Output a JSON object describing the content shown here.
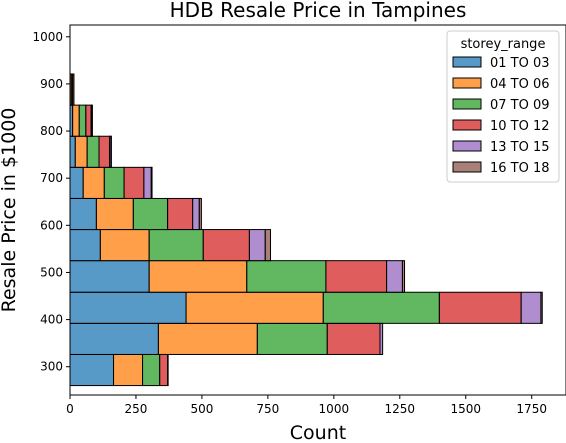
{
  "chart_data": {
    "type": "bar",
    "orientation": "horizontal",
    "stacking": "stacked",
    "title": "HDB Resale Price in Tampines",
    "xlabel": "Count",
    "ylabel": "Resale Price in $1000",
    "xlim": [
      0,
      1880
    ],
    "ylim": [
      240,
      1025
    ],
    "grid": false,
    "legend_title": "storey_range",
    "legend_position": "top-right",
    "x_ticks": [
      0,
      250,
      500,
      750,
      1000,
      1250,
      1500,
      1750
    ],
    "y_ticks": [
      300,
      400,
      500,
      600,
      700,
      800,
      900,
      1000
    ],
    "bins": [
      [
        260,
        326
      ],
      [
        326,
        392
      ],
      [
        392,
        458
      ],
      [
        458,
        525
      ],
      [
        525,
        591
      ],
      [
        591,
        657
      ],
      [
        657,
        723
      ],
      [
        723,
        789
      ],
      [
        789,
        855
      ],
      [
        855,
        921
      ],
      [
        921,
        987
      ],
      [
        987,
        1053
      ]
    ],
    "series": [
      {
        "name": "01 TO 03",
        "color": "#1f77b4",
        "values": [
          165,
          335,
          440,
          300,
          115,
          100,
          50,
          20,
          10,
          0,
          0,
          0
        ]
      },
      {
        "name": "04 TO 06",
        "color": "#ff7f0e",
        "values": [
          110,
          375,
          520,
          370,
          185,
          140,
          80,
          45,
          25,
          5,
          0,
          0
        ]
      },
      {
        "name": "07 TO 09",
        "color": "#2ca02c",
        "values": [
          65,
          265,
          440,
          300,
          205,
          130,
          75,
          45,
          25,
          5,
          0,
          0
        ]
      },
      {
        "name": "10 TO 12",
        "color": "#d62728",
        "values": [
          30,
          200,
          310,
          230,
          175,
          95,
          75,
          40,
          20,
          5,
          0,
          0
        ]
      },
      {
        "name": "13 TO 15",
        "color": "#9467bd",
        "values": [
          2,
          10,
          75,
          60,
          60,
          25,
          28,
          5,
          2,
          0,
          0,
          0
        ]
      },
      {
        "name": "16 TO 18",
        "color": "#8c564b",
        "values": [
          0,
          0,
          5,
          8,
          20,
          8,
          3,
          2,
          3,
          0,
          0,
          0
        ]
      }
    ]
  }
}
